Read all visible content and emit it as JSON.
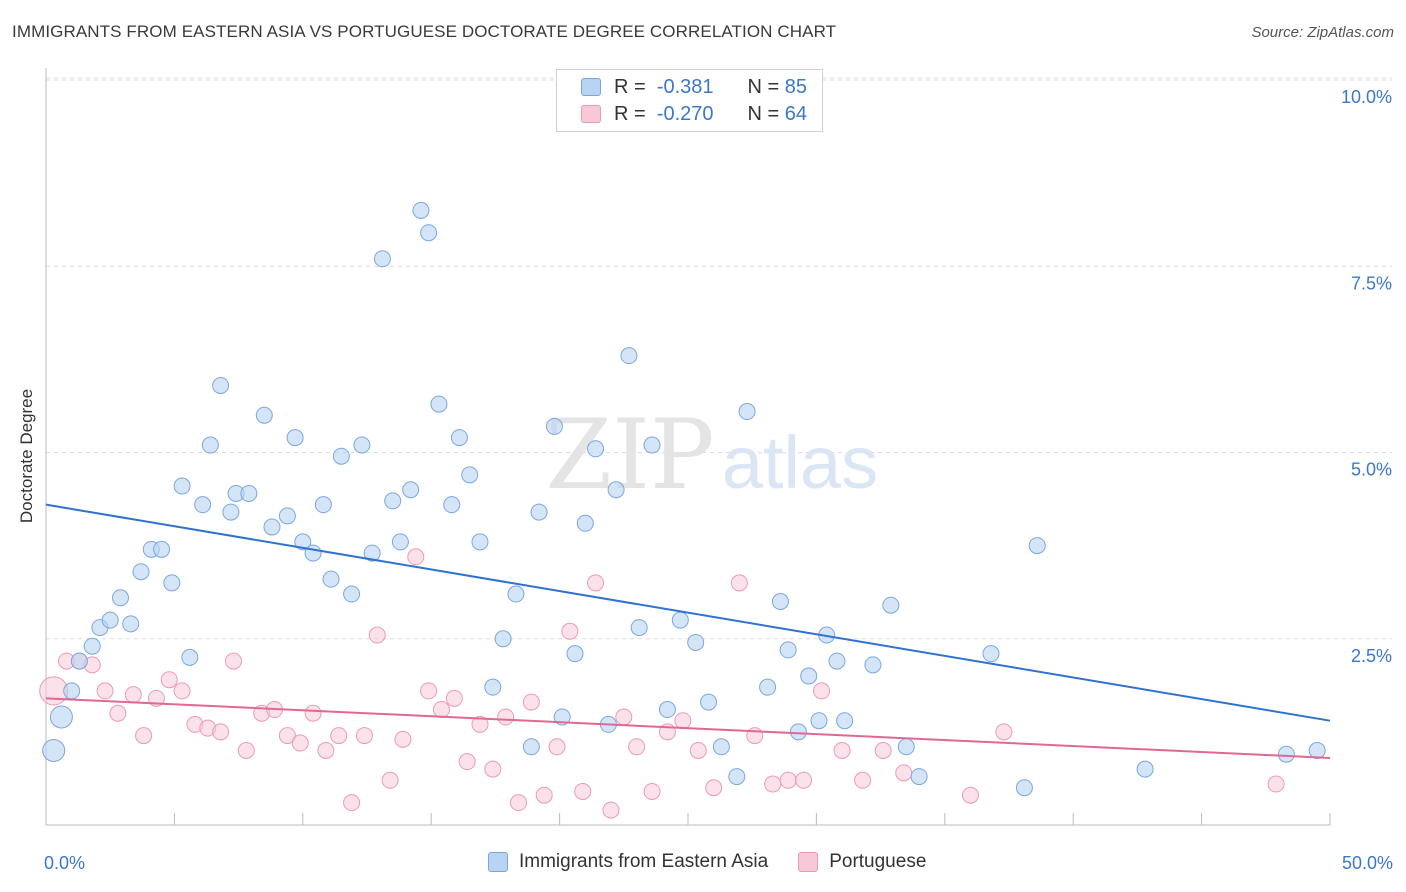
{
  "title": "IMMIGRANTS FROM EASTERN ASIA VS PORTUGUESE DOCTORATE DEGREE CORRELATION CHART",
  "source": "Source: ZipAtlas.com",
  "watermark": {
    "zip": "ZIP",
    "atlas": "atlas"
  },
  "legend": [
    {
      "r_label": "R =",
      "r_value": "-0.381",
      "n_label": "N =",
      "n_value": "85"
    },
    {
      "r_label": "R =",
      "r_value": "-0.270",
      "n_label": "N =",
      "n_value": "64"
    }
  ],
  "colors": {
    "blue_fill": "#b9d3f3",
    "blue_stroke": "#7aa7de",
    "blue_line": "#2f72d0",
    "pink_fill": "#f8c8d7",
    "pink_stroke": "#ec9ab5",
    "pink_line": "#e06894",
    "tick_text": "#3b78c9",
    "grid": "#dddddd"
  },
  "chart_data": {
    "type": "scatter",
    "title": "IMMIGRANTS FROM EASTERN ASIA VS PORTUGUESE DOCTORATE DEGREE CORRELATION CHART",
    "xlabel": "",
    "ylabel": "Doctorate Degree",
    "xlim": [
      0,
      50
    ],
    "ylim": [
      0,
      10.5
    ],
    "x_tick_labels": [
      "0.0%",
      "50.0%"
    ],
    "y_ticks": [
      2.5,
      5.0,
      7.5,
      10.0
    ],
    "y_tick_labels": [
      "2.5%",
      "5.0%",
      "7.5%",
      "10.0%"
    ],
    "grid": true,
    "legend_position": "bottom",
    "series": [
      {
        "name": "Immigrants from Eastern Asia",
        "color": "#b9d3f3",
        "trend": {
          "x": [
            0,
            50
          ],
          "y": [
            4.3,
            1.4
          ]
        },
        "points": [
          [
            0.3,
            1.0
          ],
          [
            0.6,
            1.45
          ],
          [
            1.0,
            1.8
          ],
          [
            1.3,
            2.2
          ],
          [
            1.8,
            2.4
          ],
          [
            2.1,
            2.65
          ],
          [
            2.5,
            2.75
          ],
          [
            2.9,
            3.05
          ],
          [
            3.3,
            2.7
          ],
          [
            3.7,
            3.4
          ],
          [
            4.1,
            3.7
          ],
          [
            4.5,
            3.7
          ],
          [
            4.9,
            3.25
          ],
          [
            5.3,
            4.55
          ],
          [
            5.6,
            2.25
          ],
          [
            6.1,
            4.3
          ],
          [
            6.4,
            5.1
          ],
          [
            6.8,
            5.9
          ],
          [
            7.2,
            4.2
          ],
          [
            7.4,
            4.45
          ],
          [
            7.9,
            4.45
          ],
          [
            8.5,
            5.5
          ],
          [
            8.8,
            4.0
          ],
          [
            9.4,
            4.15
          ],
          [
            9.7,
            5.2
          ],
          [
            10.0,
            3.8
          ],
          [
            10.4,
            3.65
          ],
          [
            10.8,
            4.3
          ],
          [
            11.1,
            3.3
          ],
          [
            11.5,
            4.95
          ],
          [
            11.9,
            3.1
          ],
          [
            12.3,
            5.1
          ],
          [
            12.7,
            3.65
          ],
          [
            13.1,
            7.6
          ],
          [
            13.5,
            4.35
          ],
          [
            13.8,
            3.8
          ],
          [
            14.2,
            4.5
          ],
          [
            14.6,
            8.25
          ],
          [
            14.9,
            7.95
          ],
          [
            15.3,
            5.65
          ],
          [
            15.8,
            4.3
          ],
          [
            16.1,
            5.2
          ],
          [
            16.5,
            4.7
          ],
          [
            16.9,
            3.8
          ],
          [
            17.4,
            1.85
          ],
          [
            17.8,
            2.5
          ],
          [
            18.3,
            3.1
          ],
          [
            18.9,
            1.05
          ],
          [
            19.2,
            4.2
          ],
          [
            19.8,
            5.35
          ],
          [
            20.1,
            1.45
          ],
          [
            20.6,
            2.3
          ],
          [
            21.0,
            4.05
          ],
          [
            21.4,
            5.05
          ],
          [
            21.9,
            1.35
          ],
          [
            22.2,
            4.5
          ],
          [
            22.7,
            6.3
          ],
          [
            23.1,
            2.65
          ],
          [
            23.6,
            5.1
          ],
          [
            24.2,
            1.55
          ],
          [
            24.7,
            2.75
          ],
          [
            25.3,
            2.45
          ],
          [
            25.8,
            1.65
          ],
          [
            26.3,
            1.05
          ],
          [
            26.9,
            0.65
          ],
          [
            27.3,
            5.55
          ],
          [
            28.1,
            1.85
          ],
          [
            28.6,
            3.0
          ],
          [
            28.9,
            2.35
          ],
          [
            29.3,
            1.25
          ],
          [
            29.7,
            2.0
          ],
          [
            30.1,
            1.4
          ],
          [
            30.4,
            2.55
          ],
          [
            30.8,
            2.2
          ],
          [
            31.1,
            1.4
          ],
          [
            32.2,
            2.15
          ],
          [
            32.9,
            2.95
          ],
          [
            33.5,
            1.05
          ],
          [
            34.0,
            0.65
          ],
          [
            36.8,
            2.3
          ],
          [
            38.1,
            0.5
          ],
          [
            38.6,
            3.75
          ],
          [
            42.8,
            0.75
          ],
          [
            48.3,
            0.95
          ],
          [
            49.5,
            1.0
          ]
        ]
      },
      {
        "name": "Portuguese",
        "color": "#f8c8d7",
        "trend": {
          "x": [
            0,
            50
          ],
          "y": [
            1.7,
            0.9
          ]
        },
        "points": [
          [
            0.3,
            1.8
          ],
          [
            0.8,
            2.2
          ],
          [
            1.3,
            2.2
          ],
          [
            1.8,
            2.15
          ],
          [
            2.3,
            1.8
          ],
          [
            2.8,
            1.5
          ],
          [
            3.4,
            1.75
          ],
          [
            3.8,
            1.2
          ],
          [
            4.3,
            1.7
          ],
          [
            4.8,
            1.95
          ],
          [
            5.3,
            1.8
          ],
          [
            5.8,
            1.35
          ],
          [
            6.3,
            1.3
          ],
          [
            6.8,
            1.25
          ],
          [
            7.3,
            2.2
          ],
          [
            7.8,
            1.0
          ],
          [
            8.4,
            1.5
          ],
          [
            8.9,
            1.55
          ],
          [
            9.4,
            1.2
          ],
          [
            9.9,
            1.1
          ],
          [
            10.4,
            1.5
          ],
          [
            10.9,
            1.0
          ],
          [
            11.4,
            1.2
          ],
          [
            11.9,
            0.3
          ],
          [
            12.4,
            1.2
          ],
          [
            12.9,
            2.55
          ],
          [
            13.4,
            0.6
          ],
          [
            13.9,
            1.15
          ],
          [
            14.4,
            3.6
          ],
          [
            14.9,
            1.8
          ],
          [
            15.4,
            1.55
          ],
          [
            15.9,
            1.7
          ],
          [
            16.4,
            0.85
          ],
          [
            16.9,
            1.35
          ],
          [
            17.4,
            0.75
          ],
          [
            17.9,
            1.45
          ],
          [
            18.4,
            0.3
          ],
          [
            18.9,
            1.65
          ],
          [
            19.4,
            0.4
          ],
          [
            19.9,
            1.05
          ],
          [
            20.4,
            2.6
          ],
          [
            20.9,
            0.45
          ],
          [
            21.4,
            3.25
          ],
          [
            22.0,
            0.2
          ],
          [
            22.5,
            1.45
          ],
          [
            23.0,
            1.05
          ],
          [
            23.6,
            0.45
          ],
          [
            24.2,
            1.25
          ],
          [
            24.8,
            1.4
          ],
          [
            25.4,
            1.0
          ],
          [
            26.0,
            0.5
          ],
          [
            27.0,
            3.25
          ],
          [
            27.6,
            1.2
          ],
          [
            28.3,
            0.55
          ],
          [
            28.9,
            0.6
          ],
          [
            29.5,
            0.6
          ],
          [
            30.2,
            1.8
          ],
          [
            31.0,
            1.0
          ],
          [
            31.8,
            0.6
          ],
          [
            32.6,
            1.0
          ],
          [
            33.4,
            0.7
          ],
          [
            36.0,
            0.4
          ],
          [
            37.3,
            1.25
          ],
          [
            47.9,
            0.55
          ]
        ]
      }
    ]
  },
  "bottom_legend": [
    "Immigrants from Eastern Asia",
    "Portuguese"
  ]
}
